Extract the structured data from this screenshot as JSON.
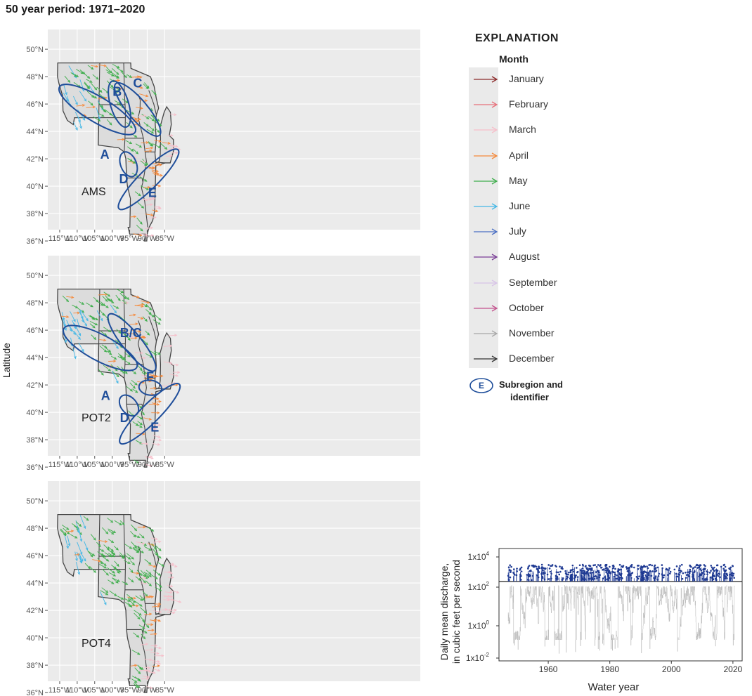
{
  "title": "50 year period: 1971–2020",
  "y_axis_label": "Latitude",
  "latitude_ticks": [
    "50°N",
    "48°N",
    "46°N",
    "44°N",
    "42°N",
    "40°N",
    "38°N",
    "36°N"
  ],
  "longitude_ticks": [
    "115°W",
    "110°W",
    "105°W",
    "100°W",
    "95°W",
    "90°W",
    "85°W"
  ],
  "panels": [
    {
      "label": "AMS",
      "subregions": [
        "A",
        "B",
        "C",
        "D",
        "E"
      ]
    },
    {
      "label": "POT2",
      "subregions": [
        "A",
        "B/C",
        "D",
        "E",
        "F"
      ]
    },
    {
      "label": "POT4",
      "subregions": []
    }
  ],
  "legend": {
    "title": "EXPLANATION",
    "subtitle": "Month",
    "months": [
      {
        "name": "January",
        "color": "#8b2a2a"
      },
      {
        "name": "February",
        "color": "#e8707a"
      },
      {
        "name": "March",
        "color": "#f6bfca"
      },
      {
        "name": "April",
        "color": "#f58a3c"
      },
      {
        "name": "May",
        "color": "#3fae4c"
      },
      {
        "name": "June",
        "color": "#45b8e6"
      },
      {
        "name": "July",
        "color": "#4a6fc4"
      },
      {
        "name": "August",
        "color": "#7a3f96"
      },
      {
        "name": "September",
        "color": "#d8c4e8"
      },
      {
        "name": "October",
        "color": "#c3528e"
      },
      {
        "name": "November",
        "color": "#a8a8a8"
      },
      {
        "name": "December",
        "color": "#333333"
      }
    ],
    "subregion_symbol_letter": "E",
    "subregion_label_line1": "Subregion and",
    "subregion_label_line2": "identifier"
  },
  "inset": {
    "ylabel_line1": "Daily mean discharge,",
    "ylabel_line2": "in cubic feet per second",
    "xlabel": "Water year",
    "x_ticks": [
      "1960",
      "1980",
      "2000",
      "2020"
    ],
    "y_ticks": [
      {
        "base": "1x10",
        "exp": "4"
      },
      {
        "base": "1x10",
        "exp": "2"
      },
      {
        "base": "1x10",
        "exp": "0"
      },
      {
        "base": "1x10",
        "exp": "-2"
      }
    ],
    "colors": {
      "peaks": "#1f3a93",
      "discharge": "#bdbdbd"
    }
  },
  "colors": {
    "ellipse": "#1f4e9a",
    "map_background": "#ebebeb",
    "land": "#dcdcdc",
    "border": "#444444"
  }
}
